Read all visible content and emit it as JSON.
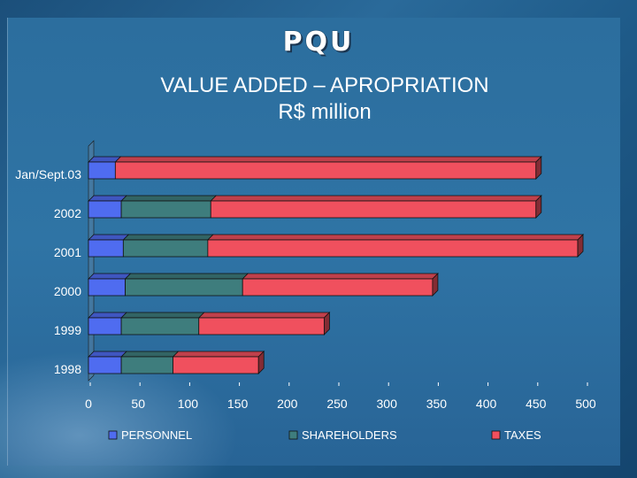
{
  "header": {
    "brand": "PQU",
    "title": "VALUE ADDED – APROPRIATION",
    "subtitle": "R$ million"
  },
  "colors": {
    "personnel": "#4f6cf0",
    "shareholders": "#3e7d7d",
    "taxes": "#f0505e"
  },
  "chart_data": {
    "type": "bar",
    "orientation": "horizontal",
    "stacked": true,
    "categories": [
      "Jan/Sept.03",
      "2002",
      "2001",
      "2000",
      "1999",
      "1998"
    ],
    "series": [
      {
        "name": "PERSONNEL",
        "values": [
          27,
          33,
          35,
          37,
          33,
          33
        ]
      },
      {
        "name": "SHAREHOLDERS",
        "values": [
          0,
          90,
          85,
          118,
          78,
          52
        ]
      },
      {
        "name": "TAXES",
        "values": [
          423,
          327,
          372,
          191,
          126,
          86
        ]
      }
    ],
    "xlim": [
      0,
      500
    ],
    "xticks": [
      "0",
      "50",
      "100",
      "150",
      "200",
      "250",
      "300",
      "350",
      "400",
      "450",
      "500"
    ],
    "legend_position": "bottom",
    "grid": false
  }
}
